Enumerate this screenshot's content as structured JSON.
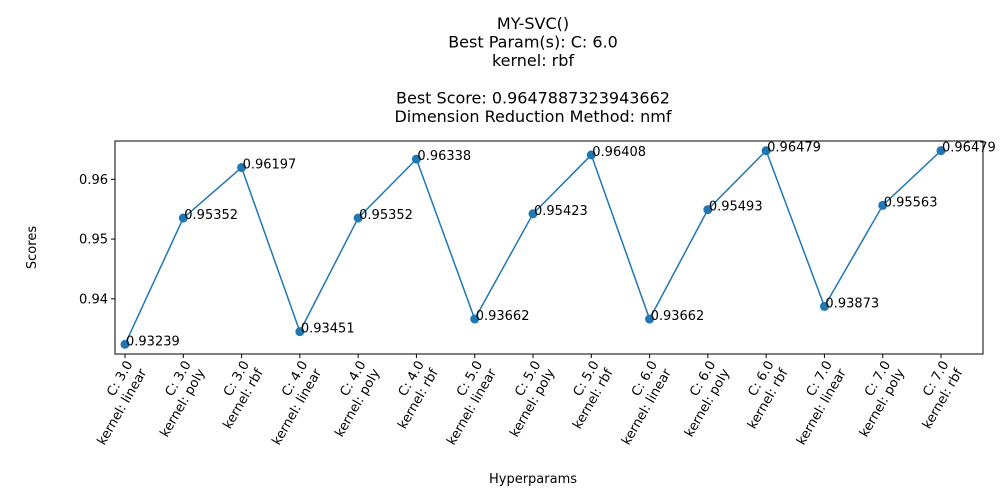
{
  "chart_data": {
    "type": "line",
    "title_lines": [
      "MY-SVC()",
      "Best Param(s): C: 6.0",
      "kernel: rbf",
      "",
      "Best Score: 0.9647887323943662",
      "Dimension Reduction Method: nmf"
    ],
    "xlabel": "Hyperparams",
    "ylabel": "Scores",
    "categories": [
      [
        "C: 3.0",
        "kernel: linear"
      ],
      [
        "C: 3.0",
        "kernel: poly"
      ],
      [
        "C: 3.0",
        "kernel: rbf"
      ],
      [
        "C: 4.0",
        "kernel: linear"
      ],
      [
        "C: 4.0",
        "kernel: poly"
      ],
      [
        "C: 4.0",
        "kernel: rbf"
      ],
      [
        "C: 5.0",
        "kernel: linear"
      ],
      [
        "C: 5.0",
        "kernel: poly"
      ],
      [
        "C: 5.0",
        "kernel: rbf"
      ],
      [
        "C: 6.0",
        "kernel: linear"
      ],
      [
        "C: 6.0",
        "kernel: poly"
      ],
      [
        "C: 6.0",
        "kernel: rbf"
      ],
      [
        "C: 7.0",
        "kernel: linear"
      ],
      [
        "C: 7.0",
        "kernel: poly"
      ],
      [
        "C: 7.0",
        "kernel: rbf"
      ]
    ],
    "values": [
      0.93239,
      0.95352,
      0.96197,
      0.93451,
      0.95352,
      0.96338,
      0.93662,
      0.95423,
      0.96408,
      0.93662,
      0.95493,
      0.96479,
      0.93873,
      0.95563,
      0.96479
    ],
    "data_labels": [
      "0.93239",
      "0.95352",
      "0.96197",
      "0.93451",
      "0.95352",
      "0.96338",
      "0.93662",
      "0.95423",
      "0.96408",
      "0.93662",
      "0.95493",
      "0.96479",
      "0.93873",
      "0.95563",
      "0.96479"
    ],
    "yticks": [
      0.94,
      0.95,
      0.96
    ],
    "ytick_labels": [
      "0.94",
      "0.95",
      "0.96"
    ],
    "ylim": [
      0.93077,
      0.96641
    ],
    "grid": false,
    "line_color": "#1f77b4"
  }
}
